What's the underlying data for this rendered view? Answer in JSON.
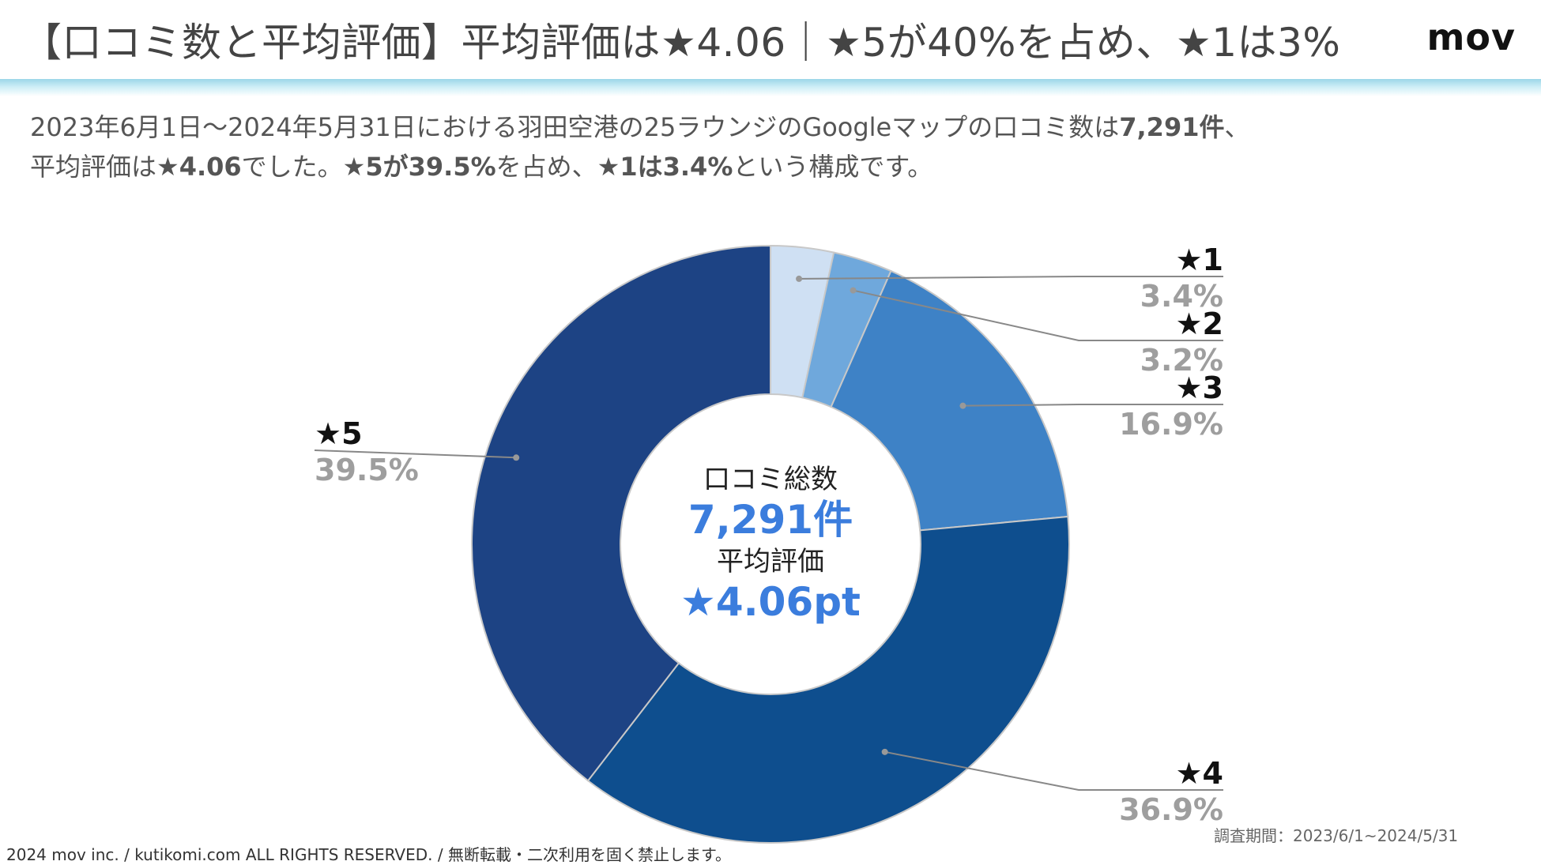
{
  "header": {
    "title": "【口コミ数と平均評価】平均評価は★4.06｜★5が40%を占め、★1は3%",
    "logo": "mov"
  },
  "summary": {
    "line1_a": "2023年6月1日〜2024年5月31日における羽田空港の25ラウンジのGoogleマップの口コミ数は",
    "line1_b": "7,291件",
    "line1_c": "、",
    "line2_a": "平均評価は",
    "line2_b": "★4.06",
    "line2_c": "でした。",
    "line2_d": "★5が39.5%",
    "line2_e": "を占め、",
    "line2_f": "★1は3.4%",
    "line2_g": "という構成です。"
  },
  "center": {
    "label1": "口コミ総数",
    "value1": "7,291件",
    "label2": "平均評価",
    "value2": "★4.06pt"
  },
  "chart_data": {
    "type": "pie",
    "variant": "donut",
    "start_angle": "12 o'clock",
    "direction": "clockwise",
    "categories": [
      "★1",
      "★2",
      "★3",
      "★4",
      "★5"
    ],
    "values": [
      3.4,
      3.2,
      16.9,
      36.9,
      39.5
    ],
    "value_labels": [
      "3.4%",
      "3.2%",
      "16.9%",
      "36.9%",
      "39.5%"
    ],
    "colors": [
      "#cfe0f3",
      "#6fa8dc",
      "#3e82c6",
      "#0e4e8e",
      "#1d4384"
    ],
    "label_placement": [
      "right",
      "right",
      "right",
      "right",
      "left"
    ]
  },
  "colors": {
    "accent": "#3b7ddd",
    "leader": "#888888",
    "pct": "#9e9e9e"
  },
  "period": "調査期間：2023/6/1~2024/5/31",
  "footer": "2024 mov inc. / kutikomi.com ALL RIGHTS RESERVED. / 無断転載・二次利用を固く禁止します。"
}
